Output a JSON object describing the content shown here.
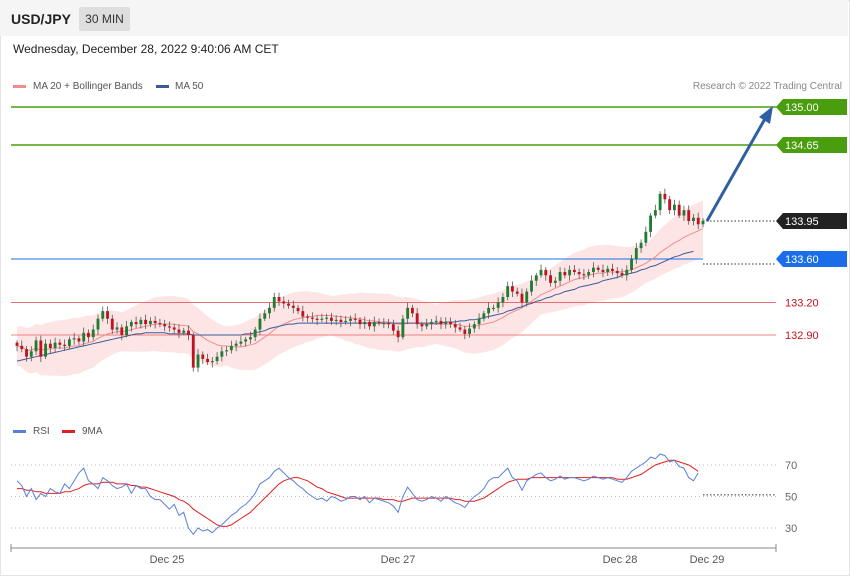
{
  "header": {
    "pair": "USD/JPY",
    "timeframe": "30 MIN"
  },
  "timestamp": "Wednesday, December 28, 2022 9:40:06 AM CET",
  "legend": {
    "ma20": "MA 20 + Bollinger Bands",
    "ma50": "MA 50",
    "credit": "Research © 2022 Trading Central"
  },
  "rsi_legend": {
    "rsi": "RSI",
    "ma9": "9MA"
  },
  "colors": {
    "up": "#1e7d32",
    "down": "#c2121f",
    "band": "#fde0e0",
    "ma20": "#f08c8c",
    "ma50": "#3a5a9a",
    "target": "#4a9d0c",
    "pivot": "#1a6fe8",
    "support": "#e85a5a",
    "arrow": "#2e5fa3",
    "rsi": "#5a80d8",
    "rsi_ma": "#e02020"
  },
  "chart_data": {
    "type": "candlestick",
    "title": "USD/JPY",
    "timeframe": "30 MIN",
    "x_ticks": [
      "Dec 25",
      "Dec 27",
      "Dec 28",
      "Dec 29"
    ],
    "ylim": [
      132.5,
      135.1
    ],
    "levels": [
      {
        "value": 135.0,
        "label": "135.00",
        "style": "target"
      },
      {
        "value": 134.65,
        "label": "134.65",
        "style": "target"
      },
      {
        "value": 133.95,
        "label": "133.95",
        "style": "current"
      },
      {
        "value": 133.6,
        "label": "133.60",
        "style": "pivot"
      },
      {
        "value": 133.2,
        "label": "133.20",
        "style": "support"
      },
      {
        "value": 132.9,
        "label": "132.90",
        "style": "support"
      }
    ],
    "close": [
      132.8,
      132.77,
      132.7,
      132.75,
      132.85,
      132.7,
      132.82,
      132.78,
      132.83,
      132.81,
      132.8,
      132.86,
      132.87,
      132.84,
      132.92,
      132.88,
      132.95,
      133.05,
      133.12,
      133.05,
      132.95,
      132.97,
      132.9,
      132.98,
      133.02,
      133.0,
      133.04,
      133.0,
      133.03,
      133.01,
      133.0,
      132.98,
      132.97,
      132.95,
      132.92,
      132.94,
      132.9,
      132.6,
      132.72,
      132.68,
      132.65,
      132.66,
      132.7,
      132.75,
      132.76,
      132.8,
      132.82,
      132.84,
      132.86,
      132.88,
      132.95,
      133.05,
      133.1,
      133.15,
      133.25,
      133.21,
      133.19,
      133.17,
      133.15,
      133.12,
      133.07,
      133.06,
      133.05,
      133.04,
      133.05,
      133.06,
      133.03,
      133.04,
      133.02,
      133.03,
      133.05,
      133.04,
      133.0,
      133.02,
      132.98,
      133.02,
      133.01,
      133.01,
      133.0,
      132.94,
      132.88,
      133.05,
      133.15,
      133.1,
      133.0,
      132.98,
      133.0,
      133.02,
      133.03,
      133.0,
      133.02,
      133.0,
      132.97,
      132.95,
      132.91,
      132.96,
      133.0,
      133.05,
      133.1,
      133.15,
      133.15,
      133.2,
      133.25,
      133.35,
      133.3,
      133.28,
      133.2,
      133.3,
      133.4,
      133.45,
      133.5,
      133.45,
      133.38,
      133.4,
      133.48,
      133.45,
      133.5,
      133.48,
      133.46,
      133.45,
      133.48,
      133.52,
      133.5,
      133.48,
      133.51,
      133.49,
      133.47,
      133.45,
      133.5,
      133.6,
      133.7,
      133.75,
      133.85,
      134.0,
      134.05,
      134.2,
      134.15,
      134.05,
      134.1,
      134.0,
      134.05,
      133.95,
      133.98,
      133.92,
      133.95
    ],
    "ma20": [
      132.8,
      132.79,
      132.76,
      132.76,
      132.78,
      132.76,
      132.77,
      132.77,
      132.78,
      132.78,
      132.78,
      132.79,
      132.8,
      132.8,
      132.82,
      132.83,
      132.84,
      132.87,
      132.89,
      132.91,
      132.92,
      132.93,
      132.93,
      132.94,
      132.95,
      132.96,
      132.97,
      132.98,
      132.99,
      133.0,
      133.0,
      133.0,
      133.0,
      133.0,
      132.99,
      132.99,
      132.98,
      132.93,
      132.91,
      132.88,
      132.85,
      132.83,
      132.81,
      132.8,
      132.8,
      132.79,
      132.79,
      132.79,
      132.8,
      132.81,
      132.82,
      132.85,
      132.88,
      132.91,
      132.95,
      132.98,
      133.0,
      133.02,
      133.04,
      133.05,
      133.06,
      133.07,
      133.07,
      133.08,
      133.08,
      133.08,
      133.08,
      133.07,
      133.07,
      133.06,
      133.06,
      133.05,
      133.05,
      133.04,
      133.03,
      133.03,
      133.02,
      133.02,
      133.02,
      133.01,
      133.0,
      133.0,
      133.01,
      133.01,
      133.01,
      133.0,
      133.0,
      133.0,
      133.0,
      133.0,
      133.0,
      133.0,
      133.0,
      132.99,
      132.98,
      132.98,
      132.98,
      132.99,
      133.0,
      133.01,
      133.02,
      133.04,
      133.06,
      133.09,
      133.11,
      133.13,
      133.15,
      133.18,
      133.21,
      133.24,
      133.27,
      133.29,
      133.31,
      133.33,
      133.35,
      133.37,
      133.39,
      133.41,
      133.42,
      133.43,
      133.45,
      133.46,
      133.47,
      133.47,
      133.48,
      133.48,
      133.48,
      133.48,
      133.49,
      133.5,
      133.52,
      133.54,
      133.56,
      133.59,
      133.62,
      133.66,
      133.69,
      133.72,
      133.75,
      133.77,
      133.8,
      133.82,
      133.84,
      133.86,
      133.88
    ],
    "ma50": [
      132.66,
      132.67,
      132.68,
      132.69,
      132.7,
      132.71,
      132.72,
      132.73,
      132.74,
      132.75,
      132.76,
      132.77,
      132.78,
      132.79,
      132.8,
      132.81,
      132.82,
      132.83,
      132.84,
      132.85,
      132.86,
      132.87,
      132.88,
      132.89,
      132.9,
      132.91,
      132.91,
      132.92,
      132.92,
      132.92,
      132.92,
      132.92,
      132.91,
      132.91,
      132.91,
      132.91,
      132.91,
      132.9,
      132.9,
      132.9,
      132.9,
      132.9,
      132.9,
      132.9,
      132.9,
      132.9,
      132.9,
      132.9,
      132.91,
      132.91,
      132.92,
      132.93,
      132.94,
      132.96,
      132.97,
      132.98,
      132.99,
      133.0,
      133.0,
      133.01,
      133.01,
      133.01,
      133.01,
      133.01,
      133.01,
      133.01,
      133.01,
      133.01,
      133.01,
      133.01,
      133.01,
      133.01,
      133.01,
      133.01,
      133.01,
      133.01,
      133.01,
      133.01,
      133.01,
      133.01,
      133.01,
      133.01,
      133.01,
      133.01,
      133.01,
      133.01,
      133.01,
      133.01,
      133.01,
      133.01,
      133.02,
      133.02,
      133.02,
      133.03,
      133.03,
      133.04,
      133.04,
      133.05,
      133.06,
      133.07,
      133.08,
      133.09,
      133.1,
      133.12,
      133.13,
      133.15,
      133.16,
      133.18,
      133.19,
      133.21,
      133.22,
      133.24,
      133.25,
      133.27,
      133.28,
      133.3,
      133.31,
      133.32,
      133.34,
      133.35,
      133.36,
      133.37,
      133.38,
      133.4,
      133.41,
      133.42,
      133.43,
      133.45,
      133.46,
      133.47,
      133.48,
      133.5,
      133.51,
      133.53,
      133.54,
      133.56,
      133.58,
      133.6,
      133.62,
      133.63,
      133.65,
      133.66,
      133.67
    ],
    "rsi_ylim": [
      20,
      80
    ],
    "rsi_ticks": [
      70,
      50,
      30
    ],
    "rsi": [
      60,
      57,
      50,
      55,
      48,
      52,
      50,
      55,
      53,
      52,
      58,
      55,
      60,
      65,
      68,
      60,
      58,
      55,
      62,
      60,
      57,
      55,
      56,
      58,
      52,
      57,
      55,
      55,
      50,
      48,
      48,
      45,
      42,
      45,
      38,
      40,
      30,
      26,
      30,
      28,
      29,
      27,
      30,
      32,
      35,
      38,
      40,
      43,
      45,
      48,
      52,
      58,
      60,
      62,
      66,
      68,
      65,
      62,
      60,
      57,
      55,
      52,
      50,
      48,
      49,
      47,
      50,
      49,
      47,
      48,
      50,
      50,
      48,
      50,
      46,
      49,
      48,
      47,
      46,
      44,
      40,
      50,
      56,
      52,
      48,
      47,
      48,
      50,
      49,
      47,
      50,
      48,
      46,
      45,
      43,
      47,
      50,
      52,
      55,
      60,
      62,
      62,
      65,
      68,
      62,
      60,
      54,
      60,
      62,
      64,
      65,
      62,
      60,
      61,
      63,
      61,
      62,
      62,
      61,
      60,
      61,
      63,
      62,
      61,
      62,
      61,
      60,
      59,
      62,
      66,
      68,
      70,
      72,
      75,
      74,
      77,
      76,
      72,
      73,
      69,
      68,
      62,
      60,
      65
    ],
    "rsi_ma": [
      55,
      55,
      54,
      54,
      53,
      53,
      52,
      52,
      52,
      52,
      53,
      53,
      54,
      55,
      57,
      58,
      58,
      58,
      59,
      59,
      59,
      58,
      58,
      58,
      57,
      57,
      56,
      56,
      55,
      54,
      53,
      52,
      51,
      50,
      48,
      47,
      45,
      42,
      40,
      38,
      36,
      34,
      32,
      31,
      31,
      32,
      34,
      36,
      38,
      40,
      43,
      46,
      49,
      52,
      55,
      58,
      60,
      61,
      62,
      62,
      61,
      60,
      58,
      56,
      55,
      53,
      52,
      51,
      50,
      49,
      49,
      49,
      49,
      49,
      49,
      49,
      49,
      48,
      48,
      48,
      47,
      47,
      48,
      49,
      49,
      49,
      49,
      49,
      49,
      49,
      49,
      49,
      48,
      48,
      47,
      47,
      47,
      48,
      49,
      51,
      53,
      55,
      57,
      59,
      60,
      61,
      61,
      61,
      62,
      62,
      62,
      62,
      62,
      62,
      62,
      62,
      62,
      62,
      62,
      62,
      62,
      62,
      62,
      62,
      62,
      62,
      61,
      61,
      61,
      62,
      63,
      64,
      66,
      68,
      70,
      71,
      72,
      73,
      73,
      72,
      71,
      70,
      68,
      66
    ]
  }
}
